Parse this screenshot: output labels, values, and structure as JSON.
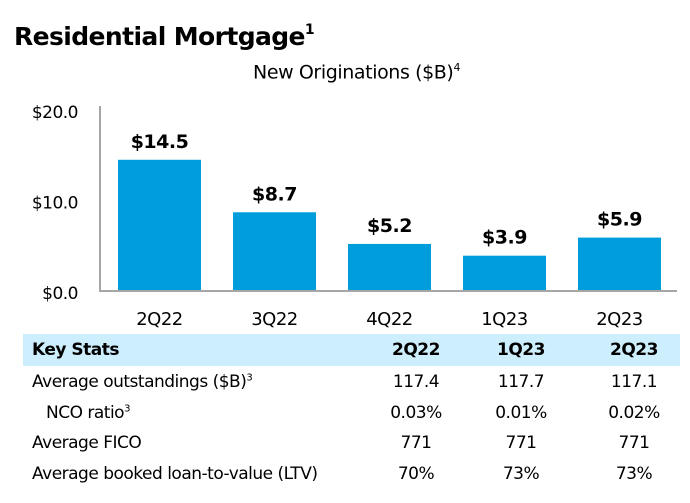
{
  "header": {
    "title": "Residential Mortgage",
    "title_footnote": "1",
    "subtitle": "New Originations ($B)",
    "subtitle_footnote": "4"
  },
  "chart_data": {
    "type": "bar",
    "title": "New Originations ($B)",
    "xlabel": "",
    "ylabel": "",
    "categories": [
      "2Q22",
      "3Q22",
      "4Q22",
      "1Q23",
      "2Q23"
    ],
    "values": [
      14.5,
      8.7,
      5.2,
      3.9,
      5.9
    ],
    "value_labels": [
      "$14.5",
      "$8.7",
      "$5.2",
      "$3.9",
      "$5.9"
    ],
    "yticks": [
      0,
      10,
      20
    ],
    "ytick_labels": [
      "$0.0",
      "$10.0",
      "$20.0"
    ],
    "ylim": [
      0,
      20
    ],
    "grid": false,
    "bar_color": "#009ddc",
    "axis_color": "#a6a6a6"
  },
  "key_stats": {
    "header": {
      "label": "Key Stats",
      "columns": [
        "2Q22",
        "1Q23",
        "2Q23"
      ]
    },
    "header_bg": "#cdeefc",
    "rows": [
      {
        "label": "Average outstandings ($B)",
        "footnote": "3",
        "indent": false,
        "values": [
          "117.4",
          "117.7",
          "117.1"
        ]
      },
      {
        "label": "NCO ratio",
        "footnote": "3",
        "indent": true,
        "values": [
          "0.03%",
          "0.01%",
          "0.02%"
        ]
      },
      {
        "label": "Average FICO",
        "footnote": "",
        "indent": false,
        "values": [
          "771",
          "771",
          "771"
        ]
      },
      {
        "label": "Average booked loan-to-value (LTV)",
        "footnote": "",
        "indent": false,
        "values": [
          "70%",
          "73%",
          "73%"
        ]
      }
    ]
  }
}
